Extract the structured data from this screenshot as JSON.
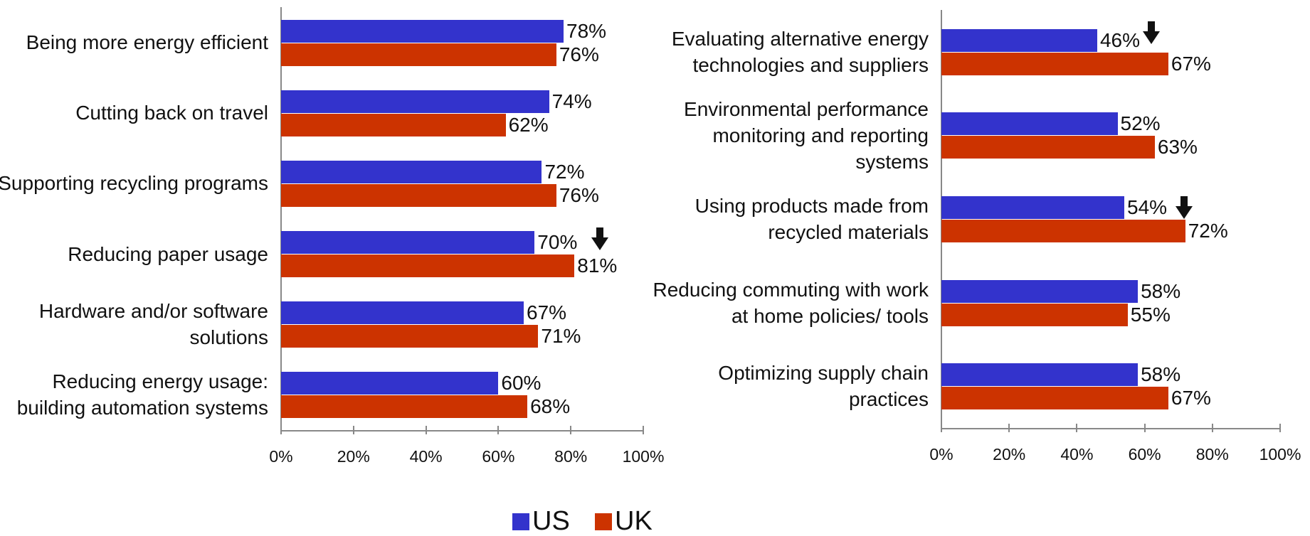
{
  "chart_data": [
    {
      "type": "bar",
      "categories": [
        "Being more energy efficient",
        "Cutting back on travel",
        "Supporting recycling programs",
        "Reducing paper usage",
        "Hardware and/or software solutions",
        "Reducing energy usage: building automation systems"
      ],
      "series": [
        {
          "name": "US",
          "color": "#3333cc",
          "values": [
            78,
            74,
            72,
            70,
            67,
            60
          ],
          "value_labels": [
            "78%",
            "74%",
            "72%",
            "70%",
            "67%",
            "60%"
          ]
        },
        {
          "name": "UK",
          "color": "#cc3300",
          "values": [
            76,
            62,
            76,
            81,
            71,
            68
          ],
          "value_labels": [
            "76%",
            "62%",
            "76%",
            "81%",
            "71%",
            "68%"
          ]
        }
      ],
      "xlim": [
        0,
        100
      ],
      "xticks": [
        {
          "value": 0,
          "label": "0%"
        },
        {
          "value": 20,
          "label": "20%"
        },
        {
          "value": 40,
          "label": "40%"
        },
        {
          "value": 60,
          "label": "60%"
        },
        {
          "value": 80,
          "label": "80%"
        },
        {
          "value": 100,
          "label": "100%"
        }
      ]
    },
    {
      "type": "bar",
      "categories": [
        "Evaluating alternative energy technologies and suppliers",
        "Environmental performance monitoring and reporting systems",
        "Using products made from recycled materials",
        "Reducing commuting with work at home policies/ tools",
        "Optimizing supply chain practices"
      ],
      "series": [
        {
          "name": "US",
          "color": "#3333cc",
          "values": [
            46,
            52,
            54,
            58,
            58
          ],
          "value_labels": [
            "46%",
            "52%",
            "54%",
            "58%",
            "58%"
          ]
        },
        {
          "name": "UK",
          "color": "#cc3300",
          "values": [
            67,
            63,
            72,
            55,
            67
          ],
          "value_labels": [
            "67%",
            "63%",
            "72%",
            "55%",
            "67%"
          ]
        }
      ],
      "xlim": [
        0,
        100
      ],
      "xticks": [
        {
          "value": 0,
          "label": "0%"
        },
        {
          "value": 20,
          "label": "20%"
        },
        {
          "value": 40,
          "label": "40%"
        },
        {
          "value": 60,
          "label": "60%"
        },
        {
          "value": 80,
          "label": "80%"
        },
        {
          "value": 100,
          "label": "100%"
        }
      ]
    }
  ]
}
